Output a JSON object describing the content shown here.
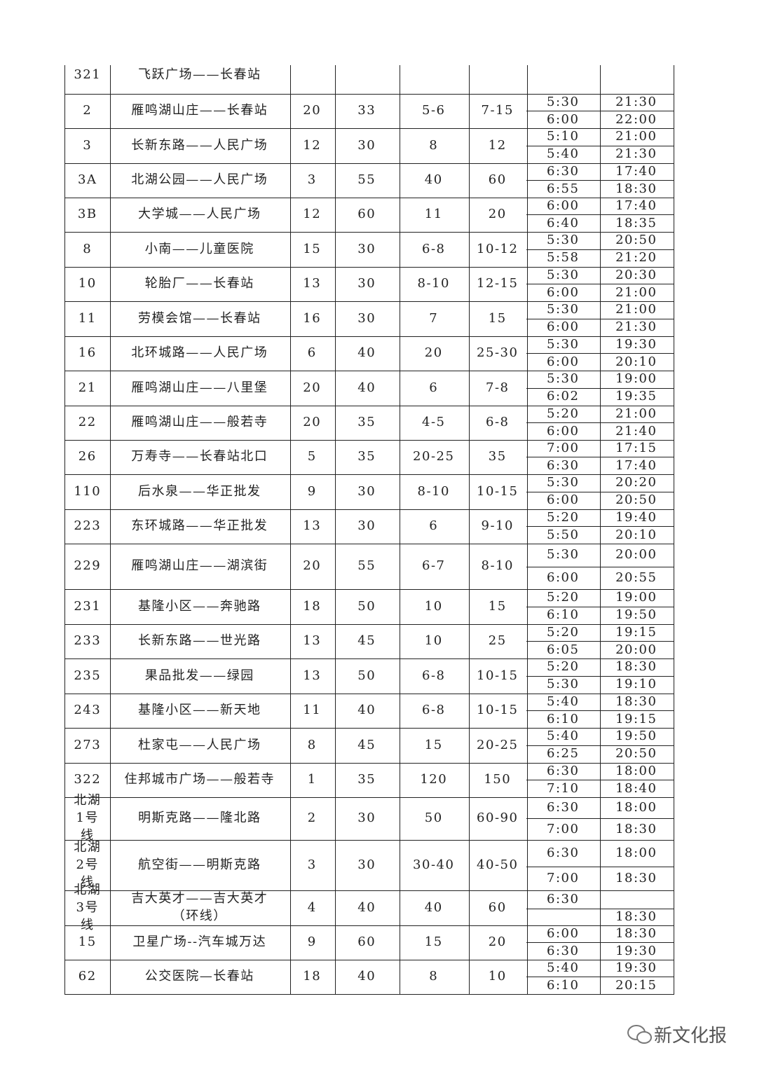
{
  "table": {
    "rows": [
      {
        "route": "321",
        "name": "飞跃广场——长春站"
      },
      {
        "route": "2",
        "name": "雁鸣湖山庄——长春站",
        "buses": "20",
        "length": "33",
        "peak": "5-6",
        "offpeak": "7-15",
        "times": [
          [
            "5:30",
            "21:30"
          ],
          [
            "6:00",
            "22:00"
          ]
        ]
      },
      {
        "route": "3",
        "name": "长新东路——人民广场",
        "buses": "12",
        "length": "30",
        "peak": "8",
        "offpeak": "12",
        "times": [
          [
            "5:10",
            "21:00"
          ],
          [
            "5:40",
            "21:30"
          ]
        ]
      },
      {
        "route": "3A",
        "name": "北湖公园——人民广场",
        "buses": "3",
        "length": "55",
        "peak": "40",
        "offpeak": "60",
        "times": [
          [
            "6:30",
            "17:40"
          ],
          [
            "6:55",
            "18:30"
          ]
        ]
      },
      {
        "route": "3B",
        "name": "大学城——人民广场",
        "buses": "12",
        "length": "60",
        "peak": "11",
        "offpeak": "20",
        "times": [
          [
            "6:00",
            "17:40"
          ],
          [
            "6:40",
            "18:35"
          ]
        ]
      },
      {
        "route": "8",
        "name": "小南——儿童医院",
        "buses": "15",
        "length": "30",
        "peak": "6-8",
        "offpeak": "10-12",
        "times": [
          [
            "5:30",
            "20:50"
          ],
          [
            "5:58",
            "21:20"
          ]
        ]
      },
      {
        "route": "10",
        "name": "轮胎厂——长春站",
        "buses": "13",
        "length": "30",
        "peak": "8-10",
        "offpeak": "12-15",
        "times": [
          [
            "5:30",
            "20:30"
          ],
          [
            "6:00",
            "21:00"
          ]
        ]
      },
      {
        "route": "11",
        "name": "劳模会馆——长春站",
        "buses": "16",
        "length": "30",
        "peak": "7",
        "offpeak": "15",
        "times": [
          [
            "5:30",
            "21:00"
          ],
          [
            "6:00",
            "21:30"
          ]
        ]
      },
      {
        "route": "16",
        "name": "北环城路——人民广场",
        "buses": "6",
        "length": "40",
        "peak": "20",
        "offpeak": "25-30",
        "times": [
          [
            "5:30",
            "19:30"
          ],
          [
            "6:00",
            "20:10"
          ]
        ]
      },
      {
        "route": "21",
        "name": "雁鸣湖山庄——八里堡",
        "buses": "20",
        "length": "40",
        "peak": "6",
        "offpeak": "7-8",
        "times": [
          [
            "5:30",
            "19:00"
          ],
          [
            "6:02",
            "19:35"
          ]
        ]
      },
      {
        "route": "22",
        "name": "雁鸣湖山庄——般若寺",
        "buses": "20",
        "length": "35",
        "peak": "4-5",
        "offpeak": "6-8",
        "times": [
          [
            "5:20",
            "21:00"
          ],
          [
            "6:00",
            "21:40"
          ]
        ]
      },
      {
        "route": "26",
        "name": "万寿寺——长春站北口",
        "buses": "5",
        "length": "35",
        "peak": "20-25",
        "offpeak": "35",
        "times": [
          [
            "7:00",
            "17:15"
          ],
          [
            "6:30",
            "17:40"
          ]
        ]
      },
      {
        "route": "110",
        "name": "后水泉——华正批发",
        "buses": "9",
        "length": "30",
        "peak": "8-10",
        "offpeak": "10-15",
        "times": [
          [
            "5:30",
            "20:20"
          ],
          [
            "6:00",
            "20:50"
          ]
        ]
      },
      {
        "route": "223",
        "name": "东环城路——华正批发",
        "buses": "13",
        "length": "30",
        "peak": "6",
        "offpeak": "9-10",
        "times": [
          [
            "5:20",
            "19:40"
          ],
          [
            "5:50",
            "20:10"
          ]
        ]
      },
      {
        "route": "229",
        "name": "雁鸣湖山庄——湖滨街",
        "buses": "20",
        "length": "55",
        "peak": "6-7",
        "offpeak": "8-10",
        "times": [
          [
            "5:30",
            "20:00"
          ],
          [
            "6:00",
            "20:55"
          ]
        ]
      },
      {
        "route": "231",
        "name": "基隆小区——奔驰路",
        "buses": "18",
        "length": "50",
        "peak": "10",
        "offpeak": "15",
        "times": [
          [
            "5:20",
            "19:00"
          ],
          [
            "6:10",
            "19:50"
          ]
        ]
      },
      {
        "route": "233",
        "name": "长新东路——世光路",
        "buses": "13",
        "length": "45",
        "peak": "10",
        "offpeak": "25",
        "times": [
          [
            "5:20",
            "19:15"
          ],
          [
            "6:05",
            "20:00"
          ]
        ]
      },
      {
        "route": "235",
        "name": "果品批发——绿园",
        "buses": "13",
        "length": "50",
        "peak": "6-8",
        "offpeak": "10-15",
        "times": [
          [
            "5:20",
            "18:30"
          ],
          [
            "5:30",
            "19:10"
          ]
        ]
      },
      {
        "route": "243",
        "name": "基隆小区——新天地",
        "buses": "11",
        "length": "40",
        "peak": "6-8",
        "offpeak": "10-15",
        "times": [
          [
            "5:40",
            "18:30"
          ],
          [
            "6:10",
            "19:15"
          ]
        ]
      },
      {
        "route": "273",
        "name": "杜家屯——人民广场",
        "buses": "8",
        "length": "45",
        "peak": "15",
        "offpeak": "20-25",
        "times": [
          [
            "5:40",
            "19:50"
          ],
          [
            "6:25",
            "20:50"
          ]
        ]
      },
      {
        "route": "322",
        "name": "住邦城市广场——般若寺",
        "buses": "1",
        "length": "35",
        "peak": "120",
        "offpeak": "150",
        "times": [
          [
            "6:30",
            "18:00"
          ],
          [
            "7:10",
            "18:40"
          ]
        ]
      },
      {
        "route": "北湖1号线",
        "name": "明斯克路——隆北路",
        "buses": "2",
        "length": "30",
        "peak": "50",
        "offpeak": "60-90",
        "times": [
          [
            "6:30",
            "18:00"
          ],
          [
            "7:00",
            "18:30"
          ]
        ]
      },
      {
        "route": "北湖2号线",
        "name": "航空街——明斯克路",
        "buses": "3",
        "length": "30",
        "peak": "30-40",
        "offpeak": "40-50",
        "times": [
          [
            "6:30",
            "18:00"
          ],
          [
            "7:00",
            "18:30"
          ]
        ]
      },
      {
        "route": "北湖3号线",
        "name": "吉大英才——吉大英才（环线）",
        "buses": "4",
        "length": "40",
        "peak": "40",
        "offpeak": "60",
        "times": [
          [
            "6:30",
            null
          ],
          [
            null,
            "18:30"
          ]
        ]
      },
      {
        "route": "15",
        "name": "卫星广场--汽车城万达",
        "buses": "9",
        "length": "60",
        "peak": "15",
        "offpeak": "20",
        "times": [
          [
            "6:00",
            "18:30"
          ],
          [
            "6:30",
            "19:30"
          ]
        ]
      },
      {
        "route": "62",
        "name": "公交医院—长春站",
        "buses": "18",
        "length": "40",
        "peak": "8",
        "offpeak": "10",
        "times": [
          [
            "5:40",
            "19:30"
          ],
          [
            "6:10",
            "20:15"
          ]
        ]
      }
    ]
  },
  "watermark": "新文化报"
}
